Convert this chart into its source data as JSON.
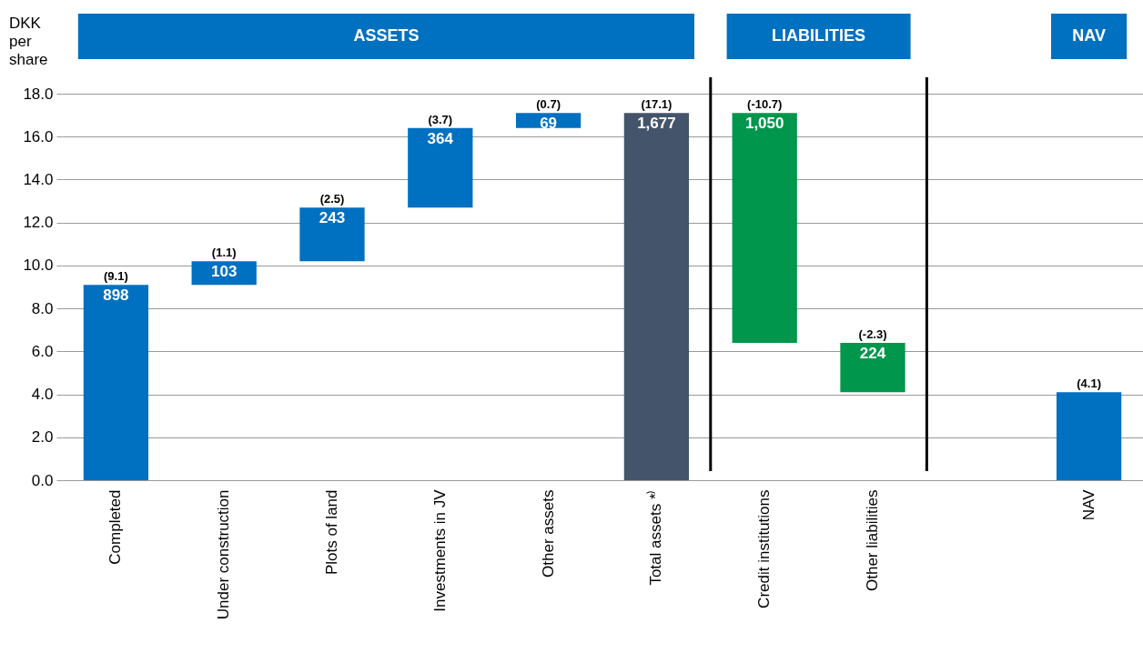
{
  "chart_data": {
    "type": "bar",
    "ylabel": "DKK per share",
    "categories": [
      "Completed",
      "Under construction",
      "Plots of land",
      "Investments in JV",
      "Other assets",
      "Total assets *⁾",
      "Credit institutions",
      "Other liabilities",
      null,
      "NAV"
    ],
    "base": [
      0,
      9.1,
      10.2,
      12.7,
      16.4,
      0,
      17.1,
      6.4,
      null,
      0
    ],
    "values": [
      9.1,
      1.1,
      2.5,
      3.7,
      0.7,
      17.1,
      -10.7,
      -2.3,
      null,
      4.1
    ],
    "colors": [
      "#0070c0",
      "#0070c0",
      "#0070c0",
      "#0070c0",
      "#0070c0",
      "#44546a",
      "#00964b",
      "#00964b",
      null,
      "#0070c0"
    ],
    "value_labels": [
      "(9.1)",
      "(1.1)",
      "(2.5)",
      "(3.7)",
      "(0.7)",
      "(17.1)",
      "(-10.7)",
      "(-2.3)",
      null,
      "(4.1)"
    ],
    "ylim": [
      0,
      18
    ],
    "yticks": [
      {
        "value": 0,
        "label": "0.0"
      },
      {
        "value": 2,
        "label": "2.0"
      },
      {
        "value": 4,
        "label": "4.0"
      },
      {
        "value": 6,
        "label": "6.0"
      },
      {
        "value": 8,
        "label": "8.0"
      },
      {
        "value": 10,
        "label": "10.0"
      },
      {
        "value": 12,
        "label": "12.0"
      },
      {
        "value": 14,
        "label": "14.0"
      },
      {
        "value": 16,
        "label": "16.0"
      },
      {
        "value": 18,
        "label": "18.0"
      }
    ],
    "grid": "y",
    "annotations": [
      "ASSETS",
      "LIABILITIES",
      "NAV",
      {
        "text": "898",
        "x": "Completed",
        "y": 9.1
      },
      {
        "text": "103",
        "x": "Under construction",
        "y": 10.2
      },
      {
        "text": "243",
        "x": "Plots of land",
        "y": 12.7
      },
      {
        "text": "364",
        "x": "Investments in JV",
        "y": 16.4
      },
      {
        "text": "69",
        "x": "Other assets",
        "y": 17.1
      },
      {
        "text": "1,677",
        "x": "Total assets *⁾",
        "y": 17.1
      },
      {
        "text": "1,050",
        "x": "Credit institutions",
        "y": 17.1
      },
      {
        "text": "224",
        "x": "Other liabilities",
        "y": 6.4
      }
    ]
  }
}
